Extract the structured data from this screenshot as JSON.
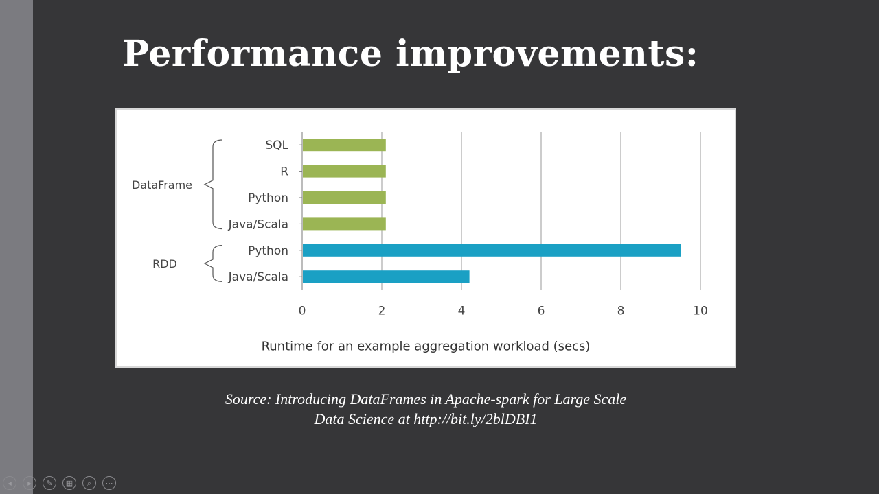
{
  "slide": {
    "title": "Performance improvements:",
    "source_line1": "Source: Introducing DataFrames in Apache-spark for Large Scale",
    "source_line2": "Data Science at http://bit.ly/2blDBI1"
  },
  "controls": [
    {
      "name": "previous-slide-icon",
      "glyph": "◂"
    },
    {
      "name": "next-slide-icon",
      "glyph": "▸"
    },
    {
      "name": "pen-icon",
      "glyph": "✎"
    },
    {
      "name": "slides-grid-icon",
      "glyph": "▦"
    },
    {
      "name": "zoom-icon",
      "glyph": "⌕"
    },
    {
      "name": "more-options-icon",
      "glyph": "⋯"
    }
  ],
  "chart_data": {
    "type": "bar",
    "orientation": "horizontal",
    "groups": [
      {
        "label": "DataFrame",
        "categories": [
          "SQL",
          "R",
          "Python",
          "Java/Scala"
        ],
        "values": [
          2.1,
          2.1,
          2.1,
          2.1
        ],
        "color": "#9bb554"
      },
      {
        "label": "RDD",
        "categories": [
          "Python",
          "Java/Scala"
        ],
        "values": [
          9.5,
          4.2
        ],
        "color": "#1aa0c4"
      }
    ],
    "xlabel": "Runtime for an example aggregation workload (secs)",
    "xlim": [
      0,
      10
    ],
    "xticks": [
      0,
      2,
      4,
      6,
      8,
      10
    ],
    "grid": "vertical"
  }
}
